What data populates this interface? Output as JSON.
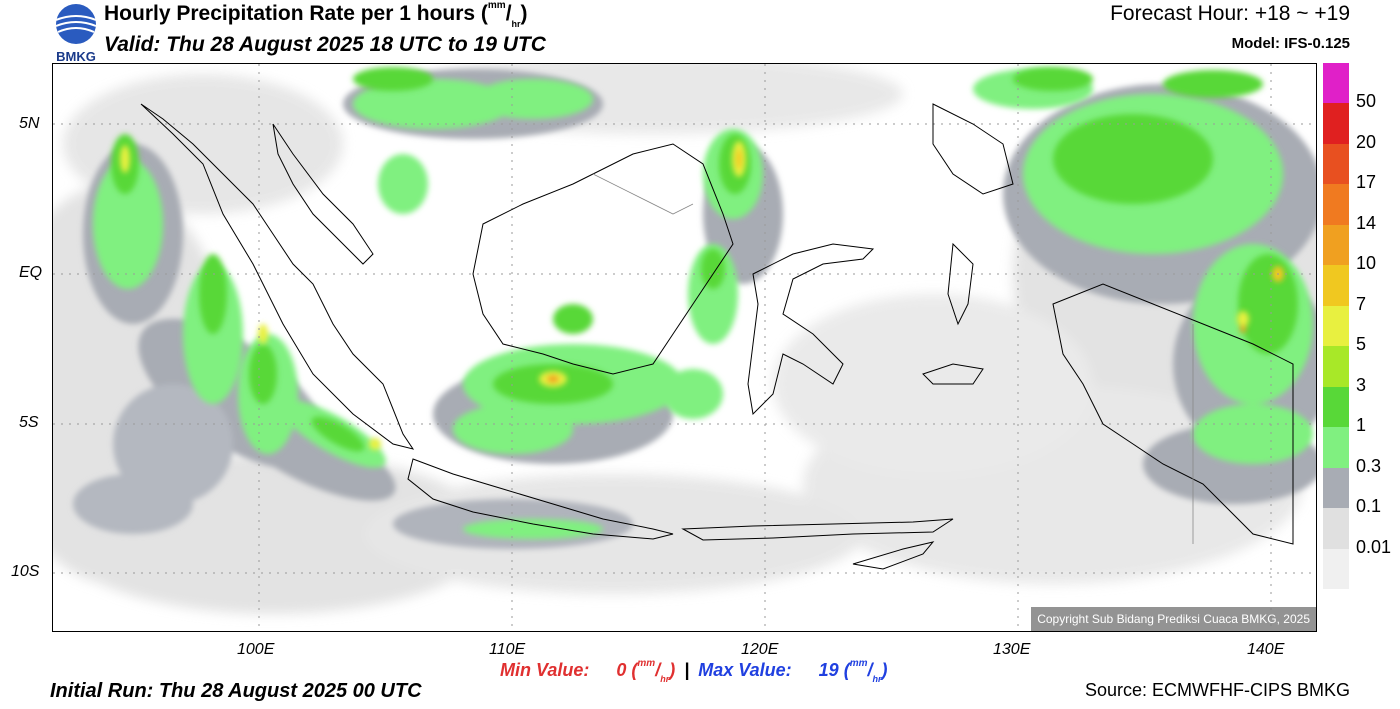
{
  "logo": {
    "text": "BMKG"
  },
  "header": {
    "title_main": "Hourly Precipitation Rate per 1 hours (",
    "title_unit_sup": "mm",
    "title_unit_sub": "hr",
    "title_close": ")",
    "valid": "Valid: Thu 28 August 2025 18 UTC to 19 UTC",
    "forecast_hour": "Forecast Hour: +18 ~ +19",
    "model": "Model: IFS-0.125"
  },
  "map": {
    "copyright": "Copyright Sub Bidang Prediksi Cuaca BMKG, 2025",
    "lat_labels": [
      "5N",
      "EQ",
      "5S",
      "10S"
    ],
    "lon_labels": [
      "100E",
      "110E",
      "120E",
      "130E",
      "140E"
    ]
  },
  "legend": {
    "labels": [
      "50",
      "20",
      "17",
      "14",
      "10",
      "7",
      "5",
      "3",
      "1",
      "0.3",
      "0.1",
      "0.01"
    ],
    "colors": [
      "#e020c8",
      "#e02020",
      "#e85020",
      "#f07a20",
      "#f0a020",
      "#f0c820",
      "#e8f040",
      "#a8e828",
      "#58d838",
      "#80f080",
      "#a8acb4",
      "#e0e0e0",
      "#f0f0f0"
    ]
  },
  "footer": {
    "min_label": "Min Value:",
    "min_value": "0",
    "max_label": "Max Value:",
    "max_value": "19",
    "unit_sup": "mm",
    "unit_sub": "hr",
    "separator": "|",
    "initial_run": "Initial Run: Thu 28 August 2025 00 UTC",
    "source": "Source: ECMWFHF-CIPS BMKG"
  }
}
